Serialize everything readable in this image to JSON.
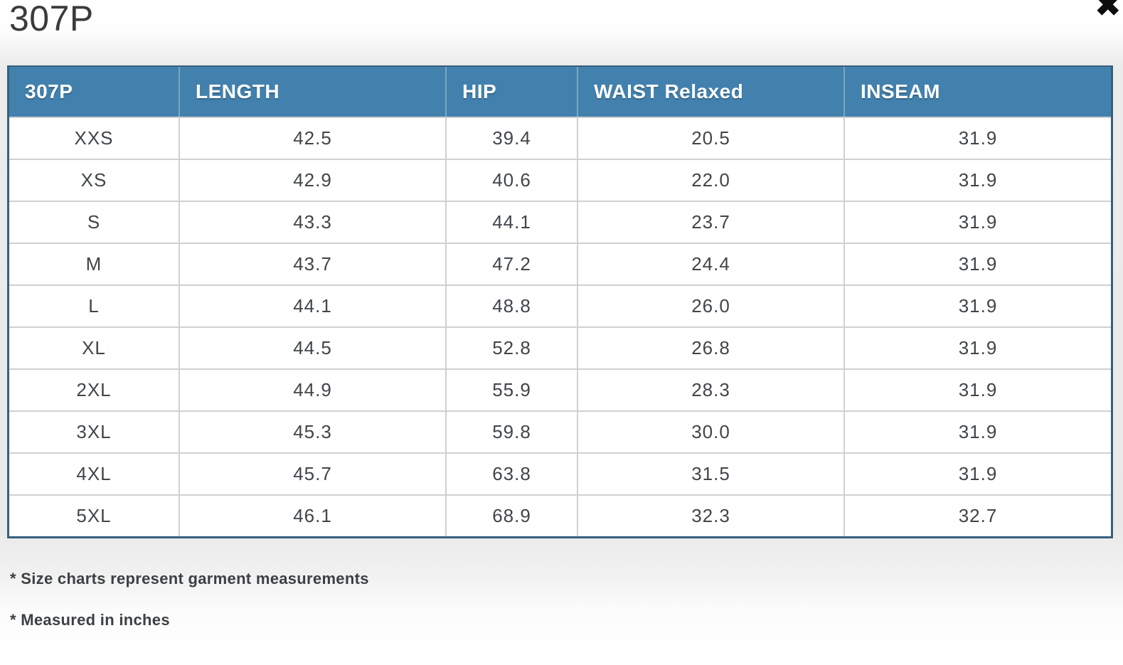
{
  "modal": {
    "title": "307P"
  },
  "icons": {
    "close": "✖"
  },
  "table": {
    "columns": [
      "307P",
      "LENGTH",
      "HIP",
      "WAIST Relaxed",
      "INSEAM"
    ],
    "rows": [
      {
        "size": "XXS",
        "length": "42.5",
        "hip": "39.4",
        "waist": "20.5",
        "inseam": "31.9"
      },
      {
        "size": "XS",
        "length": "42.9",
        "hip": "40.6",
        "waist": "22.0",
        "inseam": "31.9"
      },
      {
        "size": "S",
        "length": "43.3",
        "hip": "44.1",
        "waist": "23.7",
        "inseam": "31.9"
      },
      {
        "size": "M",
        "length": "43.7",
        "hip": "47.2",
        "waist": "24.4",
        "inseam": "31.9"
      },
      {
        "size": "L",
        "length": "44.1",
        "hip": "48.8",
        "waist": "26.0",
        "inseam": "31.9"
      },
      {
        "size": "XL",
        "length": "44.5",
        "hip": "52.8",
        "waist": "26.8",
        "inseam": "31.9"
      },
      {
        "size": "2XL",
        "length": "44.9",
        "hip": "55.9",
        "waist": "28.3",
        "inseam": "31.9"
      },
      {
        "size": "3XL",
        "length": "45.3",
        "hip": "59.8",
        "waist": "30.0",
        "inseam": "31.9"
      },
      {
        "size": "4XL",
        "length": "45.7",
        "hip": "63.8",
        "waist": "31.5",
        "inseam": "31.9"
      },
      {
        "size": "5XL",
        "length": "46.1",
        "hip": "68.9",
        "waist": "32.3",
        "inseam": "32.7"
      }
    ]
  },
  "notes": {
    "garment": "* Size charts represent garment measurements",
    "units": "* Measured in inches"
  },
  "colors": {
    "header_bg": "#4281ad",
    "header_divider": "#7aa6c4",
    "table_border": "#37607d",
    "row_divider": "#d0d0d0",
    "cell_text": "#40454a",
    "title_text": "#3b3b3b",
    "note_text": "#3c4043"
  }
}
